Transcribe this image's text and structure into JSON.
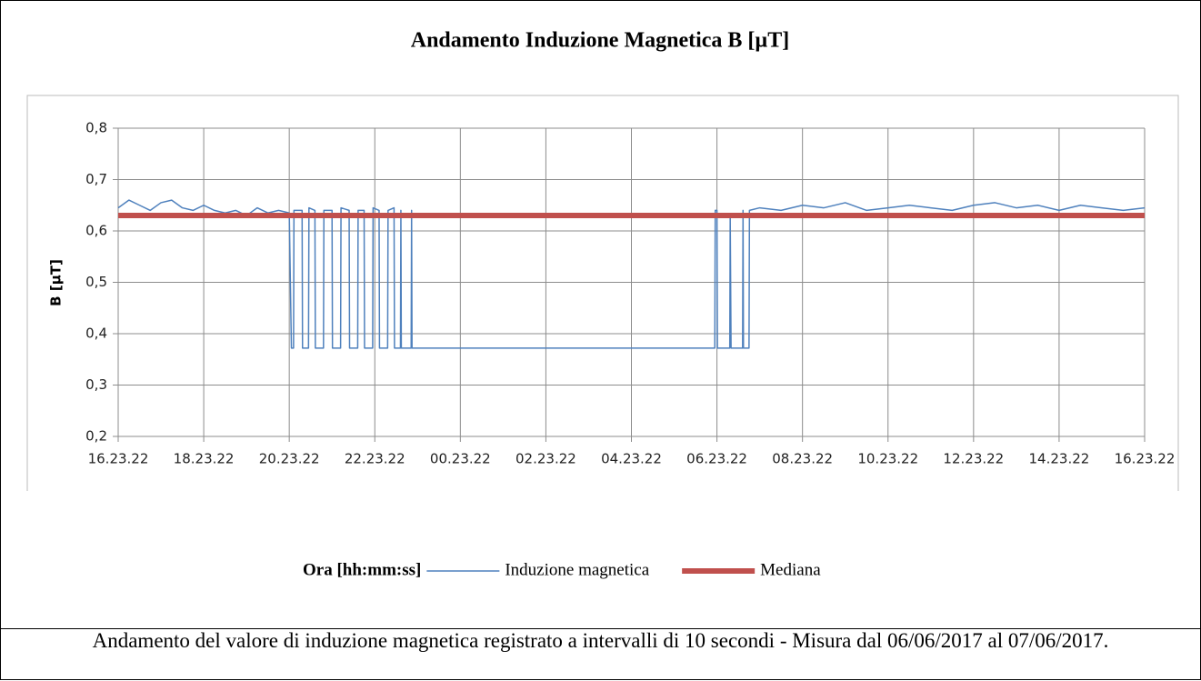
{
  "chart_data": {
    "type": "line",
    "title": "Andamento Induzione Magnetica B [µT]",
    "x_label": "Ora [hh:mm:ss]",
    "y_label": "B [µT]",
    "caption": "Andamento del valore di induzione magnetica registrato a intervalli di 10 secondi - Misura dal 06/06/2017 al 07/06/2017.",
    "xlim": [
      0,
      24
    ],
    "xticks": [
      {
        "value": 0,
        "label": "16.23.22"
      },
      {
        "value": 2,
        "label": "18.23.22"
      },
      {
        "value": 4,
        "label": "20.23.22"
      },
      {
        "value": 6,
        "label": "22.23.22"
      },
      {
        "value": 8,
        "label": "00.23.22"
      },
      {
        "value": 10,
        "label": "02.23.22"
      },
      {
        "value": 12,
        "label": "04.23.22"
      },
      {
        "value": 14,
        "label": "06.23.22"
      },
      {
        "value": 16,
        "label": "08.23.22"
      },
      {
        "value": 18,
        "label": "10.23.22"
      },
      {
        "value": 20,
        "label": "12.23.22"
      },
      {
        "value": 22,
        "label": "14.23.22"
      },
      {
        "value": 24,
        "label": "16.23.22"
      }
    ],
    "ylim": [
      0.2,
      0.8
    ],
    "yticks": [
      {
        "value": 0.2,
        "label": "0,2"
      },
      {
        "value": 0.3,
        "label": "0,3"
      },
      {
        "value": 0.4,
        "label": "0,4"
      },
      {
        "value": 0.5,
        "label": "0,5"
      },
      {
        "value": 0.6,
        "label": "0,6"
      },
      {
        "value": 0.7,
        "label": "0,7"
      },
      {
        "value": 0.8,
        "label": "0,8"
      }
    ],
    "grid": true,
    "legend": "bottom",
    "series": [
      {
        "name": "Induzione magnetica",
        "color": "#4f81bd",
        "line_width": 1.5,
        "x": [
          0,
          0.25,
          0.5,
          0.75,
          1,
          1.25,
          1.5,
          1.75,
          2,
          2.25,
          2.5,
          2.75,
          3,
          3.25,
          3.5,
          3.75,
          4,
          4.05,
          4.1,
          4.11,
          4.3,
          4.31,
          4.45,
          4.46,
          4.6,
          4.61,
          4.8,
          4.81,
          5,
          5.01,
          5.2,
          5.21,
          5.4,
          5.41,
          5.6,
          5.61,
          5.75,
          5.76,
          5.95,
          5.96,
          6.1,
          6.11,
          6.3,
          6.31,
          6.45,
          6.46,
          6.6,
          6.61,
          6.62,
          6.85,
          6.86,
          6.87,
          10,
          13.95,
          13.96,
          14,
          14.01,
          14.3,
          14.31,
          14.33,
          14.6,
          14.61,
          14.62,
          14.75,
          14.76,
          15,
          15.5,
          16,
          16.5,
          17,
          17.5,
          18,
          18.5,
          19,
          19.5,
          20,
          20.5,
          21,
          21.5,
          22,
          22.5,
          23,
          23.5,
          24
        ],
        "values": [
          0.645,
          0.66,
          0.65,
          0.64,
          0.655,
          0.66,
          0.645,
          0.64,
          0.65,
          0.64,
          0.635,
          0.64,
          0.63,
          0.645,
          0.635,
          0.64,
          0.635,
          0.372,
          0.372,
          0.64,
          0.64,
          0.372,
          0.372,
          0.645,
          0.64,
          0.372,
          0.372,
          0.64,
          0.64,
          0.372,
          0.372,
          0.645,
          0.64,
          0.372,
          0.372,
          0.64,
          0.64,
          0.372,
          0.372,
          0.645,
          0.64,
          0.372,
          0.372,
          0.64,
          0.645,
          0.372,
          0.372,
          0.64,
          0.372,
          0.372,
          0.64,
          0.372,
          0.372,
          0.372,
          0.64,
          0.64,
          0.372,
          0.372,
          0.63,
          0.372,
          0.372,
          0.64,
          0.372,
          0.372,
          0.64,
          0.645,
          0.64,
          0.65,
          0.645,
          0.655,
          0.64,
          0.645,
          0.65,
          0.645,
          0.64,
          0.65,
          0.655,
          0.645,
          0.65,
          0.64,
          0.65,
          0.645,
          0.64,
          0.645
        ]
      },
      {
        "name": "Mediana",
        "color": "#c0504d",
        "line_width": 6,
        "x": [
          0,
          24
        ],
        "values": [
          0.63,
          0.63
        ]
      }
    ]
  }
}
